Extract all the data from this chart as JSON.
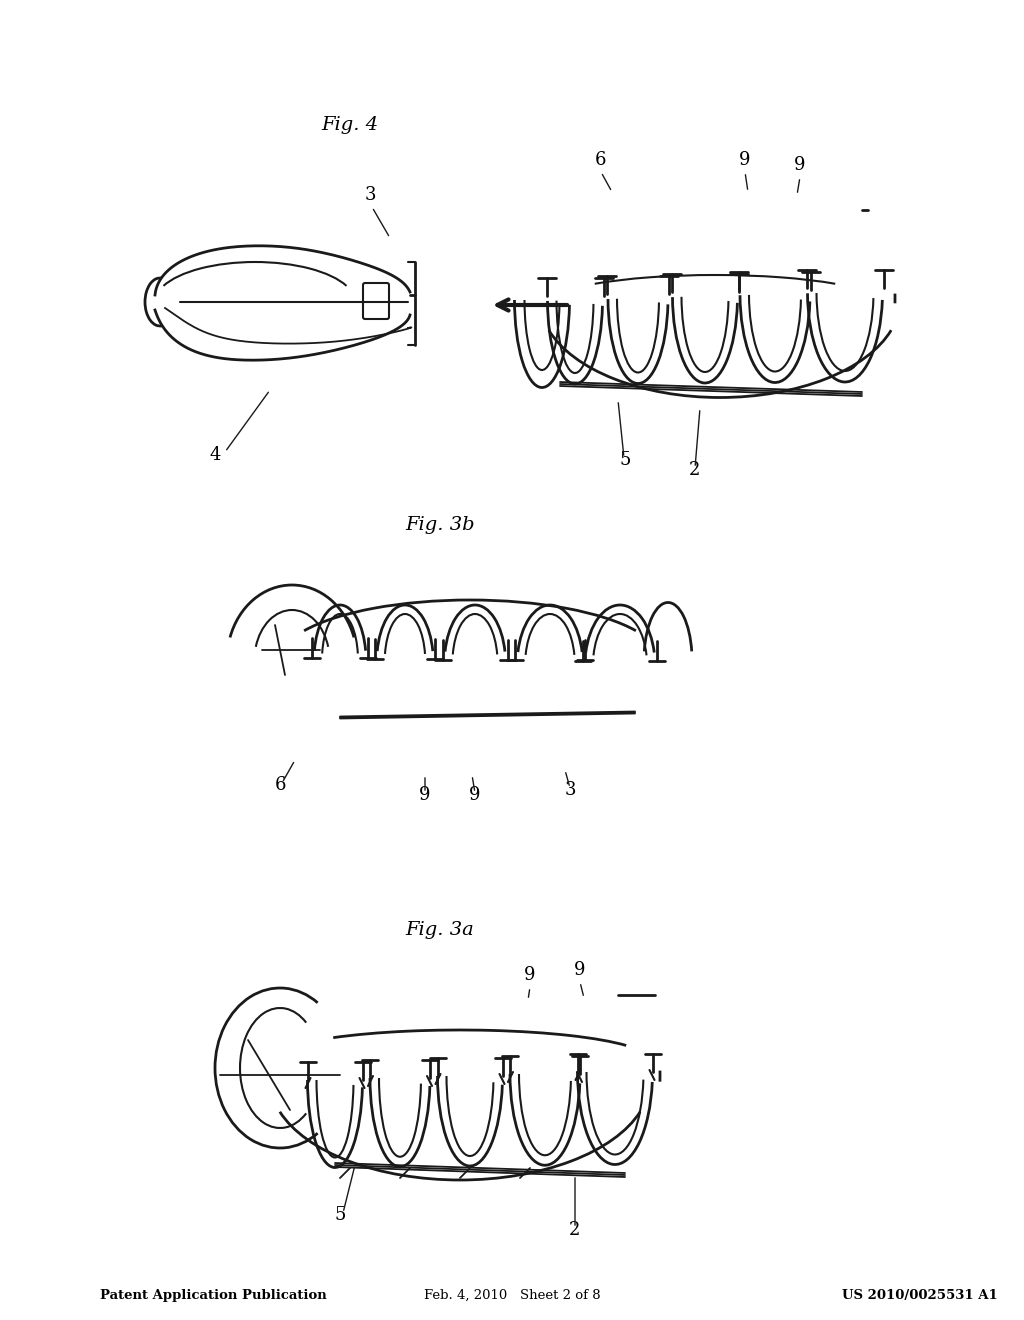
{
  "background_color": "#ffffff",
  "header_left": "Patent Application Publication",
  "header_center": "Feb. 4, 2010   Sheet 2 of 8",
  "header_right": "US 2010/0025531 A1",
  "fig_labels": [
    "Fig. 3a",
    "Fig. 3b",
    "Fig. 4"
  ],
  "line_color": "#1a1a1a",
  "text_color": "#000000",
  "font_family": "serif"
}
